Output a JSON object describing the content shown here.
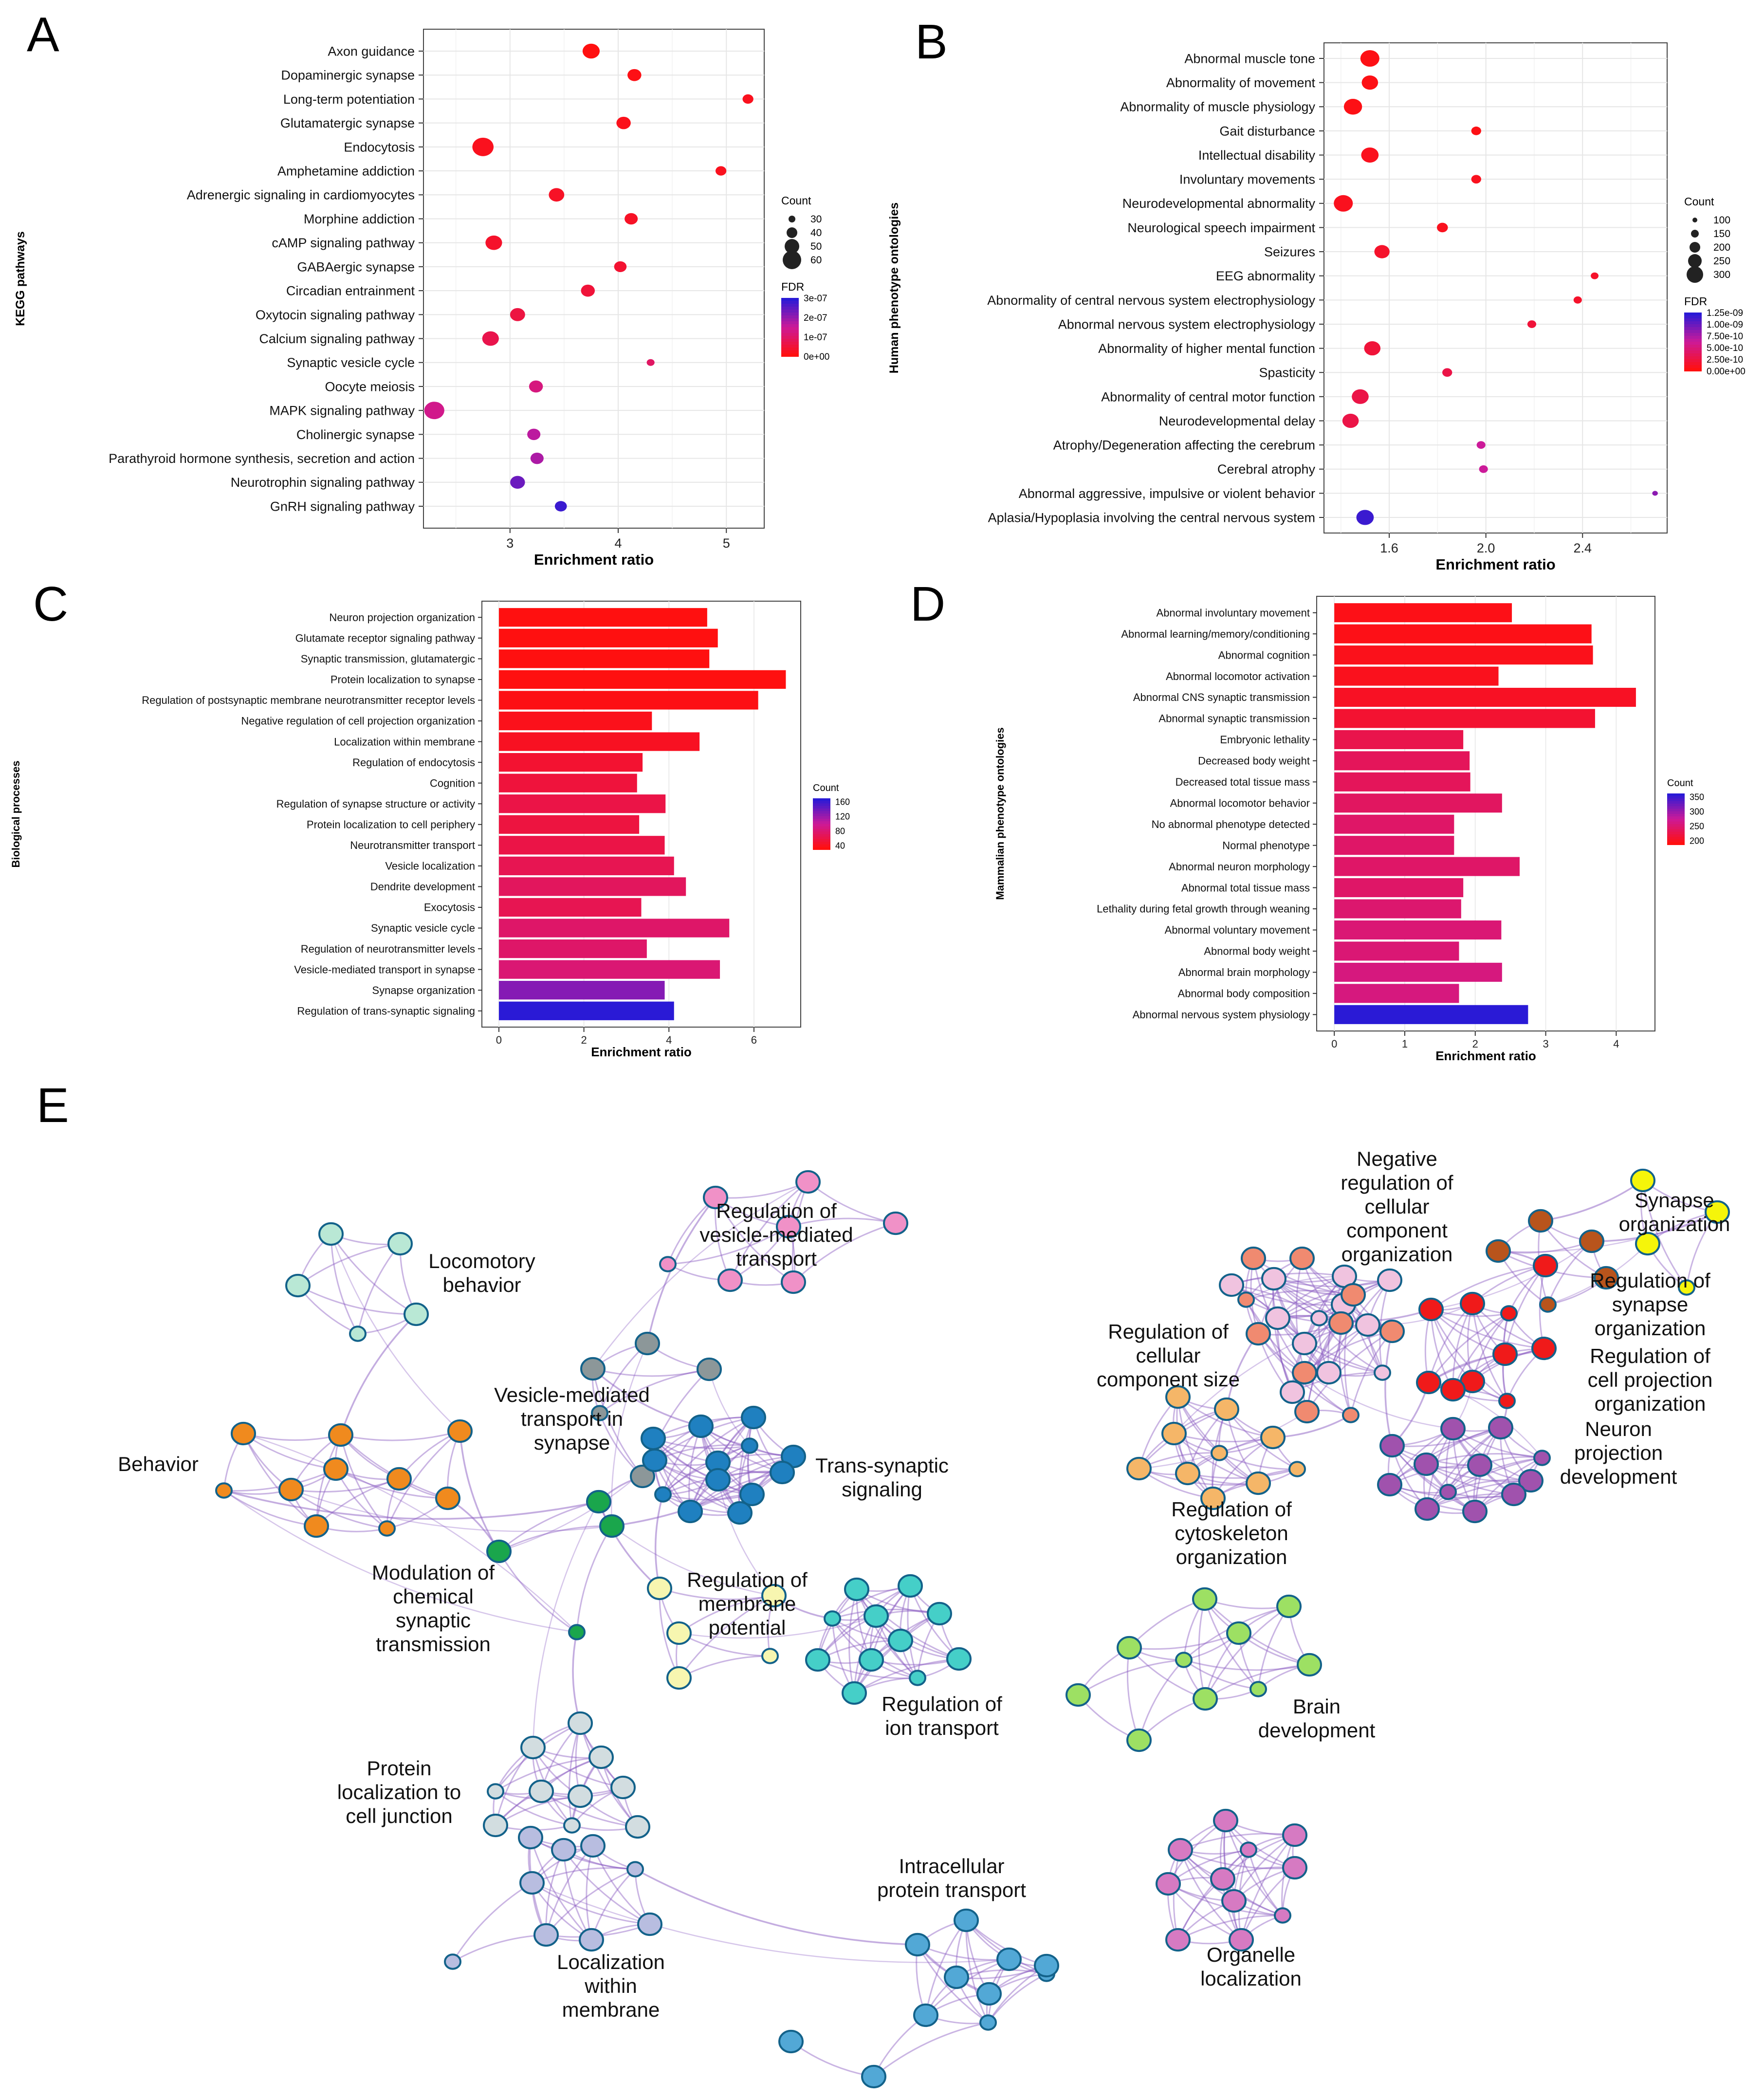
{
  "panels": {
    "a": "A",
    "b": "B",
    "c": "C",
    "d": "D",
    "e": "E"
  },
  "chart_data": [
    {
      "id": "A",
      "type": "scatter",
      "ylabel": "KEGG pathways",
      "xlabel": "Enrichment ratio",
      "xlim": [
        2.2,
        5.35
      ],
      "xticks": [
        3,
        4,
        5
      ],
      "grid": true,
      "categories": [
        "Axon guidance",
        "Dopaminergic synapse",
        "Long-term potentiation",
        "Glutamatergic synapse",
        "Endocytosis",
        "Amphetamine addiction",
        "Adrenergic signaling in cardiomyocytes",
        "Morphine addiction",
        "cAMP signaling pathway",
        "GABAergic synapse",
        "Circadian entrainment",
        "Oxytocin signaling pathway",
        "Calcium signaling pathway",
        "Synaptic vesicle cycle",
        "Oocyte meiosis",
        "MAPK signaling pathway",
        "Cholinergic synapse",
        "Parathyroid hormone synthesis, secretion and action",
        "Neurotrophin signaling pathway",
        "GnRH signaling pathway"
      ],
      "values": [
        3.75,
        4.15,
        5.2,
        4.05,
        2.75,
        4.95,
        3.43,
        4.12,
        2.85,
        4.02,
        3.72,
        3.07,
        2.82,
        4.3,
        3.24,
        2.3,
        3.22,
        3.25,
        3.07,
        3.47
      ],
      "count": [
        52,
        38,
        25,
        40,
        70,
        25,
        45,
        35,
        50,
        32,
        38,
        43,
        50,
        12,
        38,
        65,
        35,
        35,
        42,
        30
      ],
      "fdr_rank": [
        0.0,
        0.02,
        0.05,
        0.04,
        0.05,
        0.05,
        0.08,
        0.08,
        0.1,
        0.12,
        0.15,
        0.18,
        0.22,
        0.3,
        0.4,
        0.45,
        0.55,
        0.6,
        0.8,
        0.95
      ],
      "legend": {
        "size_title": "Count",
        "size_labels": [
          "30",
          "40",
          "50",
          "60"
        ],
        "size_values": [
          30,
          40,
          50,
          60
        ],
        "color_title": "FDR",
        "color_labels": [
          "3e-07",
          "2e-07",
          "1e-07",
          "0e+00"
        ]
      }
    },
    {
      "id": "B",
      "type": "scatter",
      "ylabel": "Human phenotype ontologies",
      "xlabel": "Enrichment ratio",
      "xlim": [
        1.33,
        2.75
      ],
      "xticks": [
        1.6,
        2.0,
        2.4
      ],
      "xtick_labels": [
        "1.6",
        "2.0",
        "2.4"
      ],
      "grid": true,
      "categories": [
        "Abnormal muscle tone",
        "Abnormality of movement",
        "Abnormality of muscle physiology",
        "Gait disturbance",
        "Intellectual disability",
        "Involuntary movements",
        "Neurodevelopmental abnormality",
        "Neurological speech impairment",
        "Seizures",
        "EEG abnormality",
        "Abnormality of central nervous system electrophysiology",
        "Abnormal nervous system electrophysiology",
        "Abnormality of higher mental function",
        "Spasticity",
        "Abnormality of central motor function",
        "Neurodevelopmental delay",
        "Atrophy/Degeneration affecting the cerebrum",
        "Cerebral atrophy",
        "Abnormal aggressive, impulsive or violent behavior",
        "Aplasia/Hypoplasia involving the central nervous system"
      ],
      "values": [
        1.52,
        1.52,
        1.45,
        1.96,
        1.52,
        1.96,
        1.41,
        1.82,
        1.57,
        2.45,
        2.38,
        2.19,
        1.53,
        1.84,
        1.48,
        1.44,
        1.98,
        1.99,
        2.7,
        1.5
      ],
      "count": [
        300,
        250,
        285,
        130,
        270,
        130,
        300,
        150,
        230,
        90,
        100,
        110,
        250,
        130,
        260,
        250,
        110,
        110,
        50,
        270
      ],
      "fdr_rank": [
        0.02,
        0.02,
        0.02,
        0.02,
        0.05,
        0.05,
        0.05,
        0.05,
        0.1,
        0.1,
        0.1,
        0.15,
        0.15,
        0.2,
        0.2,
        0.2,
        0.5,
        0.5,
        0.7,
        0.95
      ],
      "legend": {
        "size_title": "Count",
        "size_labels": [
          "100",
          "150",
          "200",
          "250",
          "300"
        ],
        "size_values": [
          100,
          150,
          200,
          250,
          300
        ],
        "color_title": "FDR",
        "color_labels": [
          "1.25e-09",
          "1.00e-09",
          "7.50e-10",
          "5.00e-10",
          "2.50e-10",
          "0.00e+00"
        ]
      }
    },
    {
      "id": "C",
      "type": "bar",
      "orientation": "horizontal",
      "ylabel": "Biological processes",
      "xlabel": "Enrichment ratio",
      "xlim": [
        -0.4,
        7.1
      ],
      "xticks": [
        0,
        2,
        4,
        6
      ],
      "grid": true,
      "categories": [
        "Neuron projection organization",
        "Glutamate receptor signaling pathway",
        "Synaptic transmission, glutamatergic",
        "Protein localization to synapse",
        "Regulation of postsynaptic membrane neurotransmitter receptor levels",
        "Negative regulation of cell projection organization",
        "Localization within membrane",
        "Regulation of endocytosis",
        "Cognition",
        "Regulation of synapse structure or activity",
        "Protein localization to cell periphery",
        "Neurotransmitter transport",
        "Vesicle localization",
        "Dendrite development",
        "Exocytosis",
        "Synaptic vesicle cycle",
        "Regulation of neurotransmitter levels",
        "Vesicle-mediated transport in synapse",
        "Synapse organization",
        "Regulation of trans-synaptic signaling"
      ],
      "values": [
        4.9,
        5.15,
        4.95,
        6.75,
        6.1,
        3.6,
        4.72,
        3.38,
        3.25,
        3.92,
        3.3,
        3.9,
        4.12,
        4.4,
        3.35,
        5.42,
        3.48,
        5.2,
        3.9,
        4.12
      ],
      "count": [
        40,
        40,
        40,
        40,
        42,
        45,
        48,
        55,
        60,
        65,
        62,
        65,
        70,
        75,
        70,
        80,
        80,
        85,
        130,
        165
      ],
      "legend": {
        "title": "Count",
        "labels": [
          "160",
          "120",
          "80",
          "40"
        ],
        "min": 40,
        "max": 165
      }
    },
    {
      "id": "D",
      "type": "bar",
      "orientation": "horizontal",
      "ylabel": "Mammalian phenotype ontologies",
      "xlabel": "Enrichment ratio",
      "xlim": [
        -0.25,
        4.55
      ],
      "xticks": [
        0,
        1,
        2,
        3,
        4
      ],
      "grid": true,
      "categories": [
        "Abnormal involuntary movement",
        "Abnormal learning/memory/conditioning",
        "Abnormal cognition",
        "Abnormal locomotor activation",
        "Abnormal CNS synaptic transmission",
        "Abnormal synaptic transmission",
        "Embryonic lethality",
        "Decreased body weight",
        "Decreased total tissue mass",
        "Abnormal locomotor behavior",
        "No abnormal phenotype detected",
        "Normal phenotype",
        "Abnormal neuron morphology",
        "Abnormal total tissue mass",
        "Lethality during fetal growth through weaning",
        "Abnormal voluntary movement",
        "Abnormal body weight",
        "Abnormal brain morphology",
        "Abnormal body composition",
        "Abnormal nervous system physiology"
      ],
      "values": [
        2.52,
        3.65,
        3.67,
        2.33,
        4.28,
        3.7,
        1.83,
        1.92,
        1.93,
        2.38,
        1.7,
        1.7,
        2.63,
        1.83,
        1.8,
        2.37,
        1.77,
        2.38,
        1.77,
        2.75
      ],
      "count": [
        185,
        185,
        188,
        190,
        195,
        205,
        225,
        235,
        235,
        240,
        245,
        245,
        245,
        245,
        250,
        255,
        255,
        262,
        262,
        385
      ],
      "legend": {
        "title": "Count",
        "labels": [
          "350",
          "300",
          "250",
          "200"
        ],
        "min": 180,
        "max": 385
      }
    },
    {
      "id": "E",
      "type": "network",
      "title": "",
      "clusters": [
        {
          "label": "Locomotory behavior",
          "color": "#b9e8d5"
        },
        {
          "label": "Regulation of vesicle-mediated transport",
          "color": "#f091c7"
        },
        {
          "label": "Behavior",
          "color": "#f08a1e"
        },
        {
          "label": "Vesicle-mediated transport in synapse",
          "color": "#8c9799"
        },
        {
          "label": "Trans-synaptic signaling",
          "color": "#1f80c0"
        },
        {
          "label": "Modulation of chemical synaptic transmission",
          "color": "#1aa64c"
        },
        {
          "label": "Regulation of membrane potential",
          "color": "#f7f6b0"
        },
        {
          "label": "Regulation of ion transport",
          "color": "#45cfc8"
        },
        {
          "label": "Protein localization to cell junction",
          "color": "#d2dde0"
        },
        {
          "label": "Localization within membrane",
          "color": "#b8bde0"
        },
        {
          "label": "Intracellular protein transport",
          "color": "#52a8d6"
        },
        {
          "label": "Negative regulation of cellular component organization",
          "color": "#f0c3df"
        },
        {
          "label": "Regulation of cellular component size",
          "color": "#f08a70"
        },
        {
          "label": "Synapse organization",
          "color": "#f5f50a"
        },
        {
          "label": "Regulation of synapse organization",
          "color": "#b8541c"
        },
        {
          "label": "Regulation of cell projection organization",
          "color": "#f01a1a"
        },
        {
          "label": "Neuron projection development",
          "color": "#a052ad"
        },
        {
          "label": "Regulation of cytoskeleton organization",
          "color": "#f5b668"
        },
        {
          "label": "Brain development",
          "color": "#9de063"
        },
        {
          "label": "Organelle localization",
          "color": "#d67ac2"
        }
      ],
      "labels": {
        "locomotory": [
          "Locomotory",
          "behavior"
        ],
        "vesicle_reg": [
          "Regulation of",
          "vesicle-mediated",
          "transport"
        ],
        "behavior": [
          "Behavior"
        ],
        "vesicle_syn": [
          "Vesicle-mediated",
          "transport in",
          "synapse"
        ],
        "trans": [
          "Trans-synaptic",
          "signaling"
        ],
        "modulation": [
          "Modulation of",
          "chemical",
          "synaptic",
          "transmission"
        ],
        "membrane": [
          "Regulation of",
          "membrane",
          "potential"
        ],
        "ion": [
          "Regulation of",
          "ion transport"
        ],
        "protein_junction": [
          "Protein",
          "localization to",
          "cell junction"
        ],
        "loc_membrane": [
          "Localization",
          "within",
          "membrane"
        ],
        "intracellular": [
          "Intracellular",
          "protein transport"
        ],
        "organelle": [
          "Organelle",
          "localization"
        ],
        "neg_reg": [
          "Negative",
          "regulation of",
          "cellular",
          "component",
          "organization"
        ],
        "synapse_org": [
          "Synapse",
          "organization"
        ],
        "reg_synapse": [
          "Regulation of",
          "synapse",
          "organization"
        ],
        "cell_size": [
          "Regulation of",
          "cellular",
          "component size"
        ],
        "cell_proj": [
          "Regulation of",
          "cell projection",
          "organization"
        ],
        "neuron_dev": [
          "Neuron",
          "projection",
          "development"
        ],
        "cytoskeleton": [
          "Regulation of",
          "cytoskeleton",
          "organization"
        ],
        "brain": [
          "Brain",
          "development"
        ]
      }
    }
  ]
}
